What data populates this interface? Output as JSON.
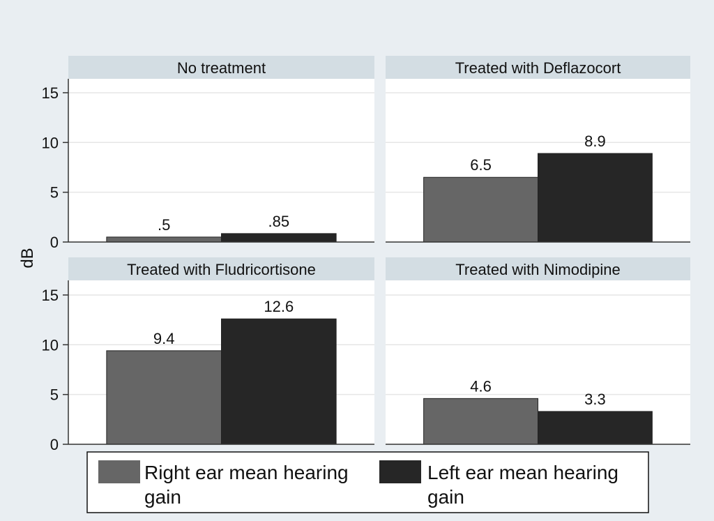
{
  "chart_data": {
    "type": "bar",
    "ylabel": "dB",
    "ylim": [
      0,
      16
    ],
    "yticks": [
      0,
      5,
      10,
      15
    ],
    "ytick_labels": [
      "0",
      "5",
      "10",
      "15"
    ],
    "grid": true,
    "legend_placement": "bottom",
    "colors": {
      "right": "#666666",
      "left": "#262626",
      "background": "#e9eef2",
      "panel_header": "#d3dde3"
    },
    "series": [
      {
        "name": "Right ear mean hearing gain",
        "legend_line1": "Right ear mean hearing",
        "legend_line2": "gain"
      },
      {
        "name": "Left ear mean hearing gain",
        "legend_line1": "Left ear mean hearing",
        "legend_line2": "gain"
      }
    ],
    "panels": [
      {
        "title": "No treatment",
        "values": [
          0.5,
          0.85
        ],
        "labels": [
          ".5",
          ".85"
        ]
      },
      {
        "title": "Treated with Deflazocort",
        "values": [
          6.5,
          8.9
        ],
        "labels": [
          "6.5",
          "8.9"
        ]
      },
      {
        "title": "Treated with Fludricortisone",
        "values": [
          9.4,
          12.6
        ],
        "labels": [
          "9.4",
          "12.6"
        ]
      },
      {
        "title": "Treated with Nimodipine",
        "values": [
          4.6,
          3.3
        ],
        "labels": [
          "4.6",
          "3.3"
        ]
      }
    ]
  }
}
